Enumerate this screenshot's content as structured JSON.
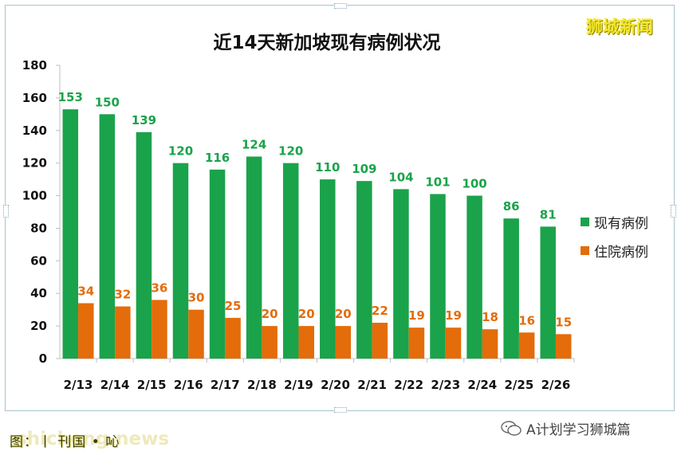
{
  "chart_data": {
    "type": "bar",
    "title": "近14天新加坡现有病例状况",
    "categories": [
      "2/13",
      "2/14",
      "2/15",
      "2/16",
      "2/17",
      "2/18",
      "2/19",
      "2/20",
      "2/21",
      "2/22",
      "2/23",
      "2/24",
      "2/25",
      "2/26"
    ],
    "series": [
      {
        "name": "现有病例",
        "color": "#1aa34a",
        "values": [
          153,
          150,
          139,
          120,
          116,
          124,
          120,
          110,
          109,
          104,
          101,
          100,
          86,
          81
        ]
      },
      {
        "name": "住院病例",
        "color": "#e46c0a",
        "values": [
          34,
          32,
          36,
          30,
          25,
          20,
          20,
          20,
          22,
          19,
          19,
          18,
          16,
          15
        ]
      }
    ],
    "ylim": [
      0,
      180
    ],
    "yticks": [
      0,
      20,
      40,
      60,
      80,
      100,
      120,
      140,
      160,
      180
    ],
    "legend": "right",
    "grid": false
  },
  "brand": "狮城新闻",
  "footer": {
    "left_text": "图：丨 刊国 • 吣",
    "watermark": "shicheng.news",
    "right_text": "A计划学习狮城篇"
  }
}
